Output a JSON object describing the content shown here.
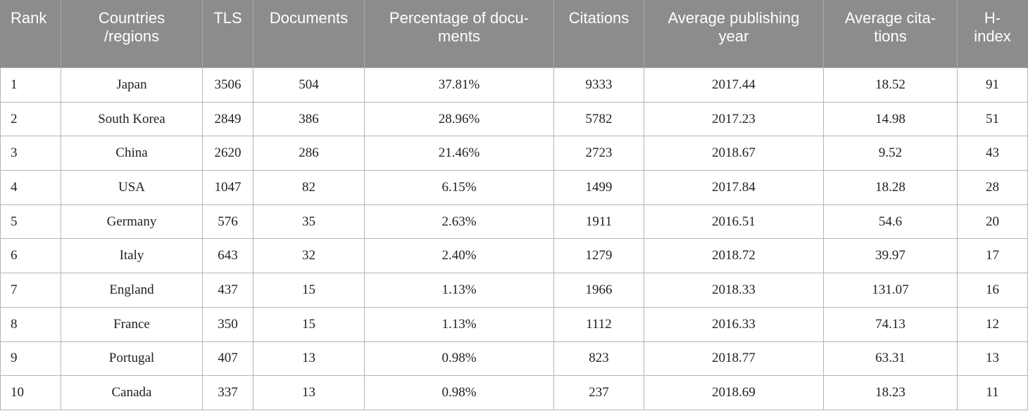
{
  "table": {
    "headers": [
      [
        "Rank"
      ],
      [
        "Countries",
        "/regions"
      ],
      [
        "TLS"
      ],
      [
        "Documents"
      ],
      [
        "Percentage of docu-",
        "ments"
      ],
      [
        "Citations"
      ],
      [
        "Average publishing",
        "year"
      ],
      [
        "Average cita-",
        "tions"
      ],
      [
        "H-",
        "index"
      ]
    ],
    "rows": [
      [
        "1",
        "Japan",
        "3506",
        "504",
        "37.81%",
        "9333",
        "2017.44",
        "18.52",
        "91"
      ],
      [
        "2",
        "South Korea",
        "2849",
        "386",
        "28.96%",
        "5782",
        "2017.23",
        "14.98",
        "51"
      ],
      [
        "3",
        "China",
        "2620",
        "286",
        "21.46%",
        "2723",
        "2018.67",
        "9.52",
        "43"
      ],
      [
        "4",
        "USA",
        "1047",
        "82",
        "6.15%",
        "1499",
        "2017.84",
        "18.28",
        "28"
      ],
      [
        "5",
        "Germany",
        "576",
        "35",
        "2.63%",
        "1911",
        "2016.51",
        "54.6",
        "20"
      ],
      [
        "6",
        "Italy",
        "643",
        "32",
        "2.40%",
        "1279",
        "2018.72",
        "39.97",
        "17"
      ],
      [
        "7",
        "England",
        "437",
        "15",
        "1.13%",
        "1966",
        "2018.33",
        "131.07",
        "16"
      ],
      [
        "8",
        "France",
        "350",
        "15",
        "1.13%",
        "1112",
        "2016.33",
        "74.13",
        "12"
      ],
      [
        "9",
        "Portugal",
        "407",
        "13",
        "0.98%",
        "823",
        "2018.77",
        "63.31",
        "13"
      ],
      [
        "10",
        "Canada",
        "337",
        "13",
        "0.98%",
        "237",
        "2018.69",
        "18.23",
        "11"
      ]
    ]
  },
  "colors": {
    "header_background": "#8c8c8c",
    "header_text": "#ffffff",
    "grid_lines": "#b5b5b5"
  }
}
